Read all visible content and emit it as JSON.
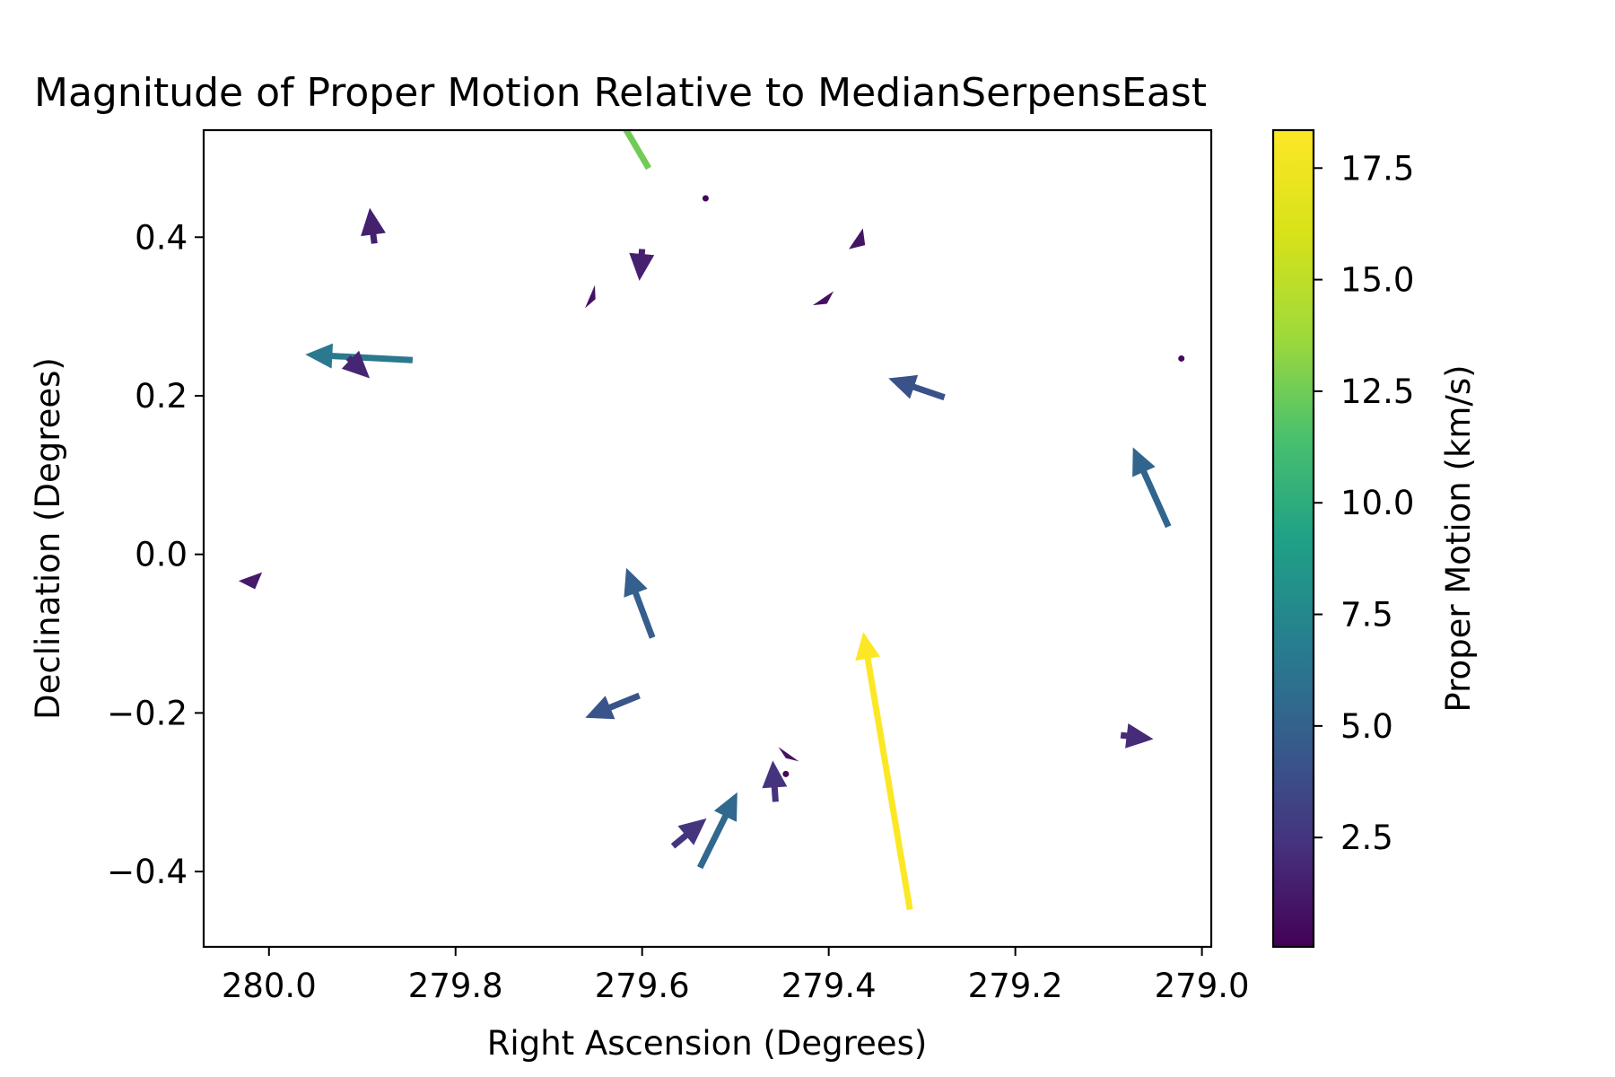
{
  "chart_data": {
    "type": "quiver",
    "title": "Magnitude of Proper Motion Relative to MedianSerpensEast",
    "xlabel": "Right Ascension (Degrees)",
    "ylabel": "Declination (Degrees)",
    "colorbar_label": "Proper Motion (km/s)",
    "colormap": "viridis",
    "xlim": [
      280.07,
      278.99
    ],
    "ylim": [
      -0.495,
      0.535
    ],
    "x_ticks": [
      280.0,
      279.8,
      279.6,
      279.4,
      279.2,
      279.0
    ],
    "x_tick_labels": [
      "280.0",
      "279.8",
      "279.6",
      "279.4",
      "279.2",
      "279.0"
    ],
    "y_ticks": [
      0.4,
      0.2,
      0.0,
      -0.2,
      -0.4
    ],
    "y_tick_labels": [
      "0.4",
      "0.2",
      "0.0",
      "−0.2",
      "−0.4"
    ],
    "clim": [
      0.05,
      18.35
    ],
    "c_ticks": [
      2.5,
      5.0,
      7.5,
      10.0,
      12.5,
      15.0,
      17.5
    ],
    "c_tick_labels": [
      "2.5",
      "5.0",
      "7.5",
      "10.0",
      "12.5",
      "15.0",
      "17.5"
    ],
    "vectors": [
      {
        "ra": 279.593,
        "dec": 0.487,
        "d_ra": 0.06,
        "d_dec": 0.12,
        "pm": 12.5
      },
      {
        "ra": 279.532,
        "dec": 0.449,
        "d_ra": 0.0,
        "d_dec": 0.0,
        "pm": 0.4
      },
      {
        "ra": 279.887,
        "dec": 0.392,
        "d_ra": 0.005,
        "d_dec": 0.045,
        "pm": 1.5
      },
      {
        "ra": 279.6,
        "dec": 0.385,
        "d_ra": 0.003,
        "d_dec": -0.04,
        "pm": 1.5
      },
      {
        "ra": 279.371,
        "dec": 0.398,
        "d_ra": -0.01,
        "d_dec": -0.008,
        "pm": 1.0
      },
      {
        "ra": 279.656,
        "dec": 0.325,
        "d_ra": -0.006,
        "d_dec": -0.003,
        "pm": 0.8
      },
      {
        "ra": 279.406,
        "dec": 0.323,
        "d_ra": -0.004,
        "d_dec": -0.007,
        "pm": 0.8
      },
      {
        "ra": 279.022,
        "dec": 0.247,
        "d_ra": 0.0,
        "d_dec": 0.0,
        "pm": 0.4
      },
      {
        "ra": 279.846,
        "dec": 0.245,
        "d_ra": 0.115,
        "d_dec": 0.007,
        "pm": 6.5
      },
      {
        "ra": 279.915,
        "dec": 0.248,
        "d_ra": -0.023,
        "d_dec": -0.026,
        "pm": 1.8
      },
      {
        "ra": 279.276,
        "dec": 0.198,
        "d_ra": 0.06,
        "d_dec": 0.024,
        "pm": 4.0
      },
      {
        "ra": 279.036,
        "dec": 0.035,
        "d_ra": 0.038,
        "d_dec": 0.1,
        "pm": 5.2
      },
      {
        "ra": 280.02,
        "dec": -0.028,
        "d_ra": -0.005,
        "d_dec": -0.016,
        "pm": 1.2
      },
      {
        "ra": 279.589,
        "dec": -0.105,
        "d_ra": 0.028,
        "d_dec": 0.088,
        "pm": 4.8
      },
      {
        "ra": 279.313,
        "dec": -0.448,
        "d_ra": 0.05,
        "d_dec": 0.35,
        "pm": 18.3
      },
      {
        "ra": 279.603,
        "dec": -0.178,
        "d_ra": 0.058,
        "d_dec": -0.028,
        "pm": 4.2
      },
      {
        "ra": 279.087,
        "dec": -0.228,
        "d_ra": -0.035,
        "d_dec": -0.005,
        "pm": 2.0
      },
      {
        "ra": 279.443,
        "dec": -0.252,
        "d_ra": 0.003,
        "d_dec": -0.005,
        "pm": 0.8
      },
      {
        "ra": 279.457,
        "dec": -0.312,
        "d_ra": 0.003,
        "d_dec": 0.052,
        "pm": 2.4
      },
      {
        "ra": 279.446,
        "dec": -0.277,
        "d_ra": 0.0,
        "d_dec": 0.0,
        "pm": 0.4
      },
      {
        "ra": 279.567,
        "dec": -0.368,
        "d_ra": -0.036,
        "d_dec": 0.035,
        "pm": 2.5
      },
      {
        "ra": 279.538,
        "dec": -0.395,
        "d_ra": -0.04,
        "d_dec": 0.095,
        "pm": 5.4
      }
    ]
  }
}
